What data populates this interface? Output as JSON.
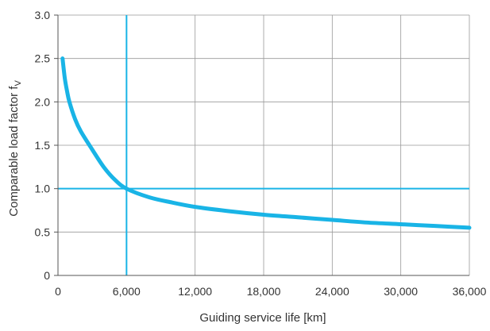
{
  "chart_data": {
    "type": "line",
    "title": "",
    "xlabel": "Guiding service life [km]",
    "ylabel": "Comparable load factor f",
    "ylabel_subscript": "V",
    "xlim": [
      0,
      36000
    ],
    "ylim": [
      0,
      3.0
    ],
    "x_ticks": [
      0,
      6000,
      12000,
      18000,
      24000,
      30000,
      36000
    ],
    "x_tick_labels": [
      "0",
      "6,000",
      "12,000",
      "18,000",
      "24,000",
      "30,000",
      "36,000"
    ],
    "y_ticks": [
      0,
      0.5,
      1.0,
      1.5,
      2.0,
      2.5,
      3.0
    ],
    "y_tick_labels": [
      "0",
      "0.5",
      "1.0",
      "1.5",
      "2.0",
      "2.5",
      "3.0"
    ],
    "grid": true,
    "reference_lines": {
      "x": 6000,
      "y": 1.0
    },
    "series": [
      {
        "color": "#19b4e6",
        "x": [
          400,
          600,
          800,
          1000,
          1500,
          2000,
          3000,
          4000,
          5000,
          6000,
          8000,
          10000,
          12000,
          15000,
          18000,
          21000,
          24000,
          27000,
          30000,
          33000,
          36000
        ],
        "y": [
          2.5,
          2.27,
          2.12,
          2.0,
          1.8,
          1.66,
          1.45,
          1.25,
          1.1,
          1.0,
          0.9,
          0.84,
          0.79,
          0.74,
          0.7,
          0.67,
          0.64,
          0.61,
          0.59,
          0.57,
          0.55
        ]
      }
    ],
    "colors": {
      "grid": "#999999",
      "reference": "#19b4e6",
      "axis": "#555555"
    }
  }
}
